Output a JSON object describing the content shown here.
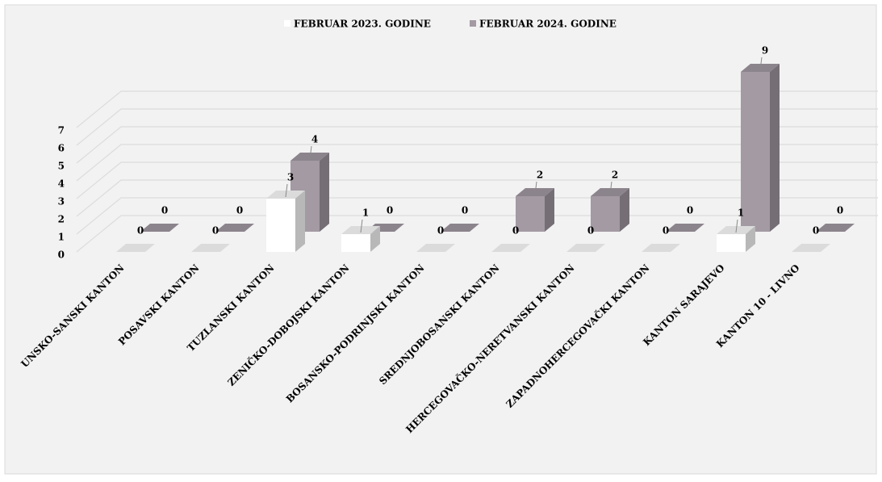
{
  "chart_data": {
    "type": "bar3d",
    "categories": [
      "UNSKO-SANSKI KANTON",
      "POSAVSKI KANTON",
      "TUZLANSKI KANTON",
      "ZENIČKO-DOBOJSKI KANTON",
      "BOSANSKO-PODRINJSKI KANTON",
      "SREDNJOBOSANSKI KANTON",
      "HERCEGOVAČKO-NERETVANSKI KANTON",
      "ZAPADNOHERCEGOVAČKI KANTON",
      "KANTON SARAJEVO",
      "KANTON 10 - LIVNO"
    ],
    "series": [
      {
        "name": "FEBRUAR  2023. GODINE",
        "color": "#ffffff",
        "values": [
          0,
          0,
          3,
          1,
          0,
          0,
          0,
          0,
          1,
          0
        ]
      },
      {
        "name": "FEBRUAR  2024. GODINE",
        "color": "#a39aa3",
        "values": [
          0,
          0,
          4,
          0,
          0,
          2,
          2,
          0,
          9,
          0
        ]
      }
    ],
    "ylim": [
      0,
      9
    ],
    "yticks": [
      0,
      1,
      2,
      3,
      4,
      5,
      6,
      7
    ],
    "grid": true,
    "legend": "top"
  }
}
